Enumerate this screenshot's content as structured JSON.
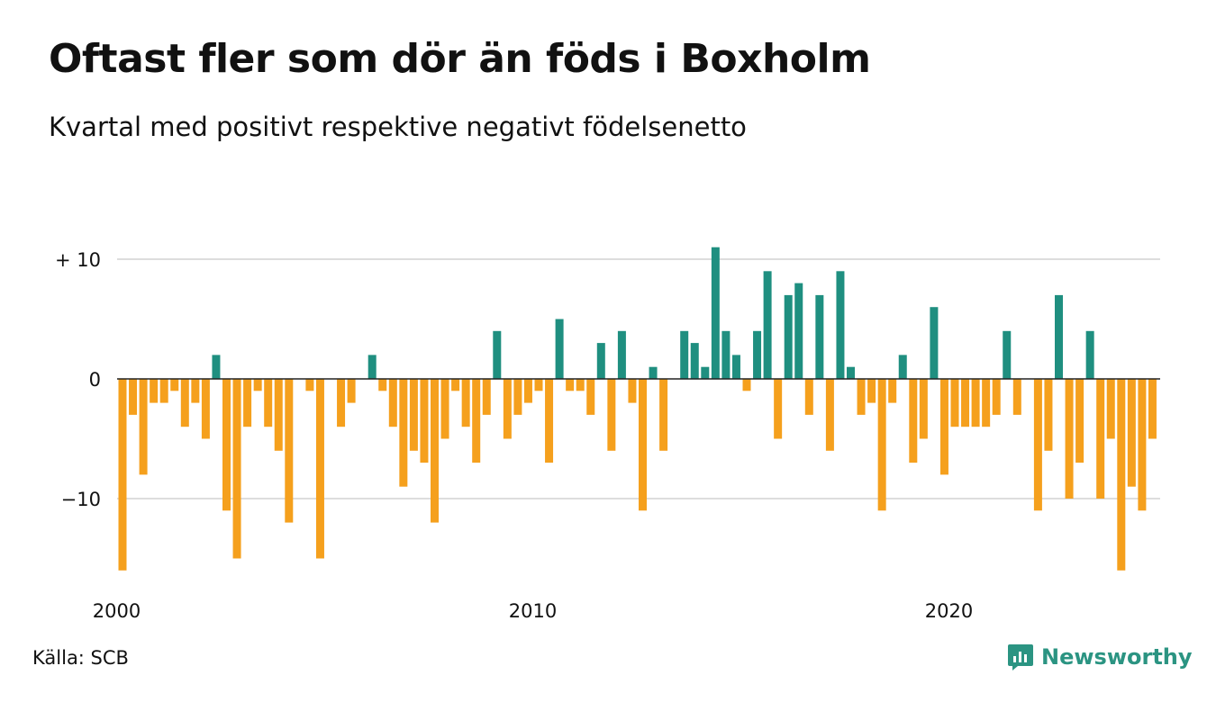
{
  "title": "Oftast fler som dör än föds i Boxholm",
  "subtitle": "Kvartal med positivt respektive negativt födelsenetto",
  "source": "Källa: SCB",
  "brand": {
    "name": "Newsworthy",
    "icon": "newsworthy-logo-icon"
  },
  "colors": {
    "positive": "#1f8f80",
    "negative": "#f5a01d",
    "grid": "#dddddd",
    "zero_line": "#222222"
  },
  "chart_data": {
    "type": "bar",
    "start_year": 2000,
    "values": [
      -16,
      -3,
      -8,
      -2,
      -2,
      -1,
      -4,
      -2,
      -5,
      2,
      -11,
      -15,
      -4,
      -1,
      -4,
      -6,
      -12,
      0,
      -1,
      -15,
      0,
      -4,
      -2,
      0,
      2,
      -1,
      -4,
      -9,
      -6,
      -7,
      -12,
      -5,
      -1,
      -4,
      -7,
      -3,
      4,
      -5,
      -3,
      -2,
      -1,
      -7,
      5,
      -1,
      -1,
      -3,
      3,
      -6,
      4,
      -2,
      -11,
      1,
      -6,
      0,
      4,
      3,
      1,
      11,
      4,
      2,
      -1,
      4,
      9,
      -5,
      7,
      8,
      -3,
      7,
      -6,
      9,
      1,
      -3,
      -2,
      -11,
      -2,
      2,
      -7,
      -5,
      6,
      -8,
      -4,
      -4,
      -4,
      -4,
      -3,
      4,
      -3,
      0,
      -11,
      -6,
      7,
      -10,
      -7,
      4,
      -10,
      -5,
      -16,
      -9,
      -11,
      -5
    ],
    "ylim": [
      -16,
      11
    ],
    "yticks": [
      10,
      0,
      -10
    ],
    "ytick_labels": [
      "+ 10",
      "0",
      "−10"
    ],
    "xtick_labels": [
      "2000",
      "2010",
      "2020"
    ],
    "grid": true
  }
}
